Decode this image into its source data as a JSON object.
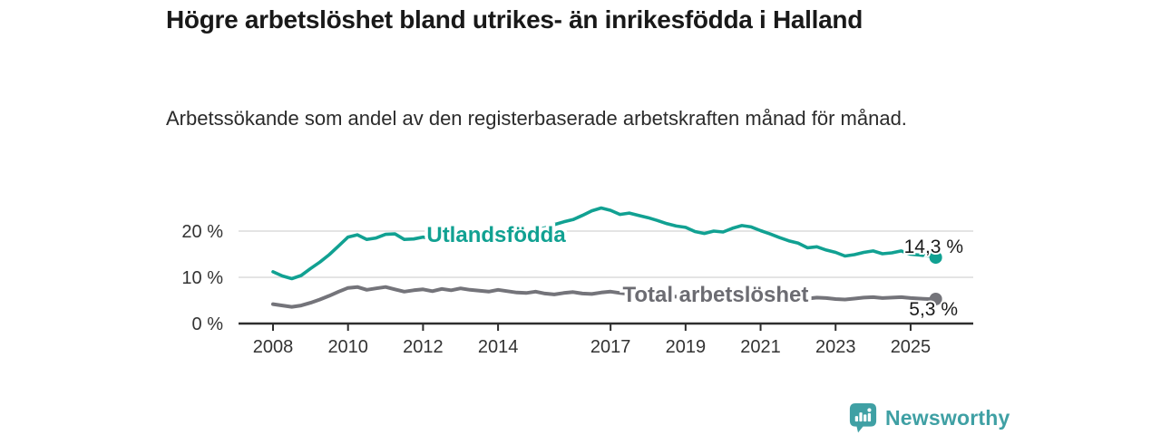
{
  "header": {
    "title": "Högre arbetslöshet bland utrikes- än inrikesfödda i Halland",
    "subtitle": "Arbetssökande som andel av den registerbaserade arbetskraften månad för månad."
  },
  "footer": {
    "brand": "Newsworthy",
    "brand_color": "#3FA0A4"
  },
  "colors": {
    "foreign_born_line": "#11A192",
    "total_line": "#74747A",
    "total_label": "#6C6C72",
    "axis": "#2E2E2E",
    "grid": "#DCDCDC",
    "tick_text": "#333333",
    "value_text": "#1A1A1A",
    "background": "#FFFFFF"
  },
  "chart_data": {
    "type": "line",
    "title": "Högre arbetslöshet bland utrikes- än inrikesfödda i Halland",
    "subtitle": "Arbetssökande som andel av den registerbaserade arbetskraften månad för månad.",
    "unit": "%",
    "legend_position": "inline-labels-on-lines",
    "grid": true,
    "x_axis": {
      "tick_years": [
        2008,
        2010,
        2012,
        2014,
        2017,
        2019,
        2021,
        2023,
        2025
      ],
      "tick_labels": [
        "2008",
        "2010",
        "2012",
        "2014",
        "2017",
        "2019",
        "2021",
        "2023",
        "2025"
      ],
      "range": [
        2007.1,
        2026.7
      ]
    },
    "y_axis": {
      "tick_values": [
        0,
        10,
        20
      ],
      "tick_labels": [
        "0 %",
        "10 %",
        "20 %"
      ],
      "range": [
        0,
        27
      ]
    },
    "x": [
      2008.0,
      2008.25,
      2008.5,
      2008.75,
      2009.0,
      2009.25,
      2009.5,
      2009.75,
      2010.0,
      2010.25,
      2010.5,
      2010.75,
      2011.0,
      2011.25,
      2011.5,
      2011.75,
      2012.0,
      2012.25,
      2012.5,
      2012.75,
      2013.0,
      2013.25,
      2013.5,
      2013.75,
      2014.0,
      2014.25,
      2014.5,
      2014.75,
      2015.0,
      2015.25,
      2015.5,
      2015.75,
      2016.0,
      2016.25,
      2016.5,
      2016.75,
      2017.0,
      2017.25,
      2017.5,
      2017.75,
      2018.0,
      2018.25,
      2018.5,
      2018.75,
      2019.0,
      2019.25,
      2019.5,
      2019.75,
      2020.0,
      2020.25,
      2020.5,
      2020.75,
      2021.0,
      2021.25,
      2021.5,
      2021.75,
      2022.0,
      2022.25,
      2022.5,
      2022.75,
      2023.0,
      2023.25,
      2023.5,
      2023.75,
      2024.0,
      2024.25,
      2024.5,
      2024.75,
      2025.0,
      2025.25,
      2025.5,
      2025.67
    ],
    "series": [
      {
        "name": "Utlandsfödda",
        "color": "#11A192",
        "end_value": 14.3,
        "end_label": "14,3 %",
        "values": [
          11.2,
          10.3,
          9.7,
          10.4,
          11.9,
          13.3,
          14.9,
          16.8,
          18.7,
          19.2,
          18.2,
          18.5,
          19.3,
          19.4,
          18.2,
          18.3,
          18.7,
          18.3,
          18.8,
          18.5,
          18.9,
          19.2,
          19.4,
          19.1,
          19.3,
          19.5,
          19.2,
          19.7,
          20.1,
          20.7,
          21.4,
          22.0,
          22.5,
          23.4,
          24.4,
          25.0,
          24.5,
          23.6,
          23.9,
          23.4,
          22.9,
          22.3,
          21.6,
          21.1,
          20.8,
          19.9,
          19.5,
          20.0,
          19.8,
          20.6,
          21.2,
          20.9,
          20.1,
          19.4,
          18.6,
          17.9,
          17.4,
          16.4,
          16.6,
          15.9,
          15.4,
          14.6,
          14.9,
          15.4,
          15.7,
          15.1,
          15.3,
          15.7,
          15.0,
          14.8,
          14.6,
          14.3
        ],
        "label_anchor": {
          "x_year": 2013.95,
          "value": 17.6
        }
      },
      {
        "name": "Total arbetslöshet",
        "color": "#74747A",
        "end_value": 5.3,
        "end_label": "5,3 %",
        "values": [
          4.2,
          3.9,
          3.6,
          3.9,
          4.5,
          5.2,
          6.0,
          6.9,
          7.7,
          7.9,
          7.3,
          7.6,
          7.9,
          7.4,
          6.9,
          7.2,
          7.4,
          7.0,
          7.5,
          7.2,
          7.6,
          7.3,
          7.1,
          6.9,
          7.3,
          7.0,
          6.7,
          6.6,
          6.9,
          6.5,
          6.3,
          6.6,
          6.8,
          6.5,
          6.4,
          6.7,
          6.9,
          6.6,
          6.4,
          6.3,
          6.2,
          6.0,
          5.9,
          5.8,
          5.8,
          5.7,
          5.6,
          5.7,
          5.9,
          6.1,
          6.2,
          6.0,
          5.9,
          5.7,
          5.6,
          5.5,
          5.5,
          5.4,
          5.6,
          5.5,
          5.3,
          5.2,
          5.4,
          5.6,
          5.7,
          5.5,
          5.6,
          5.7,
          5.5,
          5.4,
          5.3,
          5.3
        ],
        "label_anchor": {
          "x_year": 2019.8,
          "value": 4.7
        }
      }
    ]
  }
}
